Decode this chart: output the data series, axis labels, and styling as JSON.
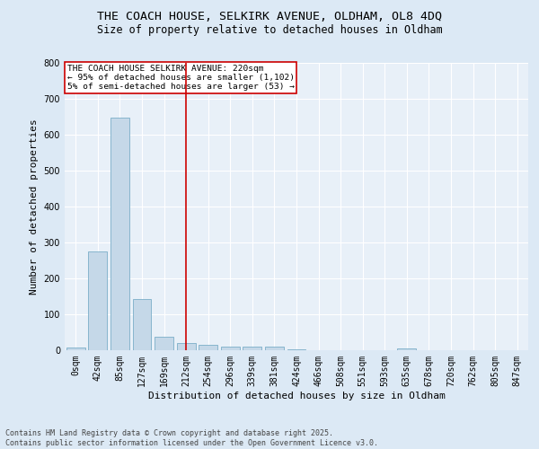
{
  "title_line1": "THE COACH HOUSE, SELKIRK AVENUE, OLDHAM, OL8 4DQ",
  "title_line2": "Size of property relative to detached houses in Oldham",
  "xlabel": "Distribution of detached houses by size in Oldham",
  "ylabel": "Number of detached properties",
  "property_label": "THE COACH HOUSE SELKIRK AVENUE: 220sqm",
  "annotation_line1": "← 95% of detached houses are smaller (1,102)",
  "annotation_line2": "5% of semi-detached houses are larger (53) →",
  "footer_line1": "Contains HM Land Registry data © Crown copyright and database right 2025.",
  "footer_line2": "Contains public sector information licensed under the Open Government Licence v3.0.",
  "bin_labels": [
    "0sqm",
    "42sqm",
    "85sqm",
    "127sqm",
    "169sqm",
    "212sqm",
    "254sqm",
    "296sqm",
    "339sqm",
    "381sqm",
    "424sqm",
    "466sqm",
    "508sqm",
    "551sqm",
    "593sqm",
    "635sqm",
    "678sqm",
    "720sqm",
    "762sqm",
    "805sqm",
    "847sqm"
  ],
  "bar_values": [
    7,
    275,
    648,
    143,
    38,
    20,
    14,
    10,
    10,
    9,
    3,
    0,
    0,
    0,
    0,
    4,
    0,
    0,
    0,
    0,
    0
  ],
  "bar_color": "#c5d8e8",
  "bar_edge_color": "#7aaec8",
  "vline_color": "#cc0000",
  "vline_x": 5,
  "annotation_box_color": "#cc0000",
  "annotation_box_fill": "#ffffff",
  "background_color": "#dce9f5",
  "plot_bg_color": "#e8f0f8",
  "ylim": [
    0,
    800
  ],
  "yticks": [
    0,
    100,
    200,
    300,
    400,
    500,
    600,
    700,
    800
  ],
  "grid_color": "#ffffff",
  "title_fontsize": 9.5,
  "subtitle_fontsize": 8.5,
  "annotation_fontsize": 6.8,
  "ylabel_fontsize": 8,
  "xlabel_fontsize": 8,
  "tick_fontsize": 7,
  "footer_fontsize": 6
}
